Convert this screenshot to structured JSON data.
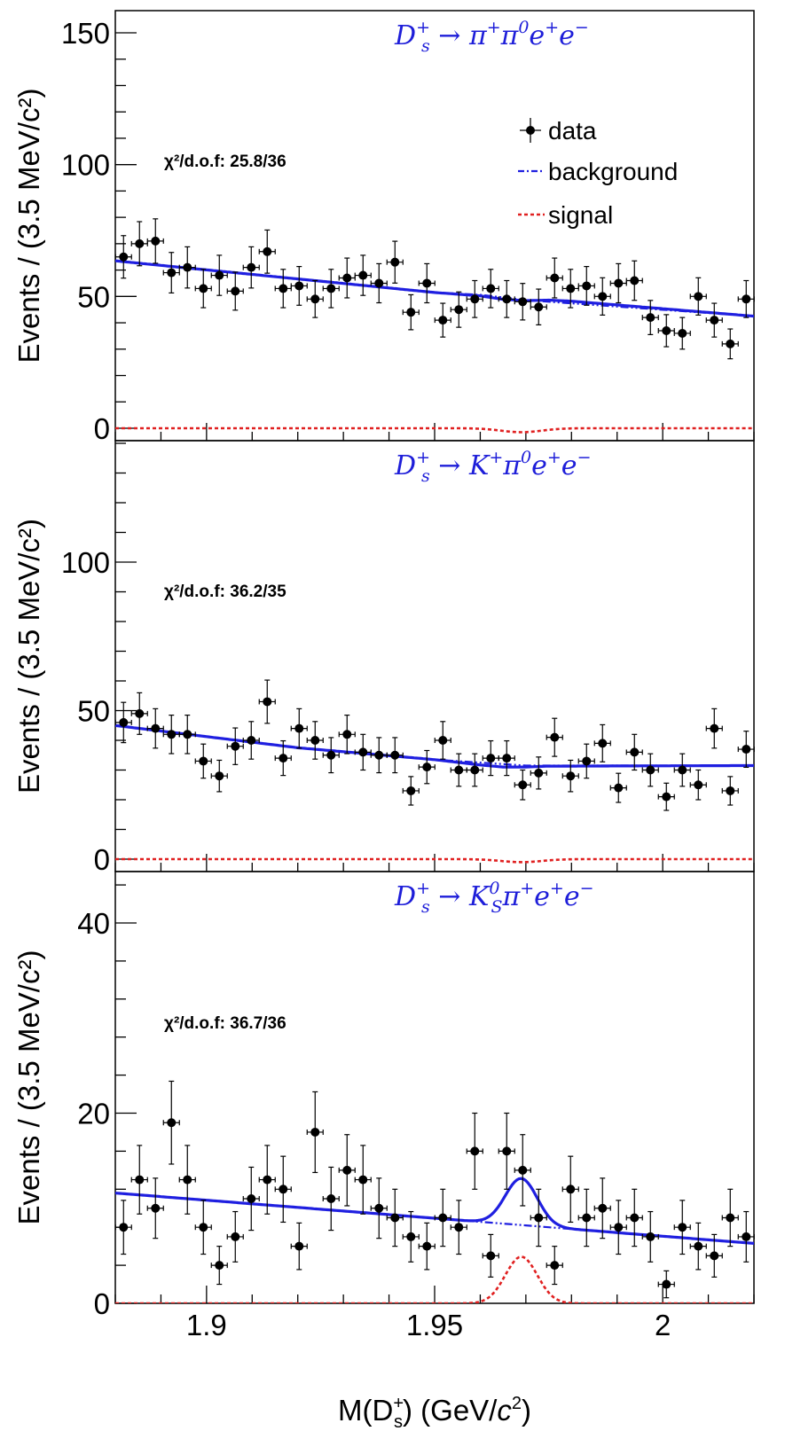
{
  "chart_data": [
    {
      "type": "scatter",
      "title": "D_s^+ → π^+π^0e^+e^-",
      "chi2": "χ²/d.o.f: 25.8/36",
      "ylabel": "Events / (3.5 MeV/c²)",
      "xlabel": "",
      "xlim": [
        1.88,
        2.02
      ],
      "ylim": [
        0,
        160
      ],
      "yticks": [
        0,
        50,
        100,
        150
      ],
      "legend": {
        "position": "top-right",
        "entries": [
          "data",
          "background",
          "signal"
        ]
      },
      "data": {
        "x": [
          1.8818,
          1.8853,
          1.8888,
          1.8923,
          1.8958,
          1.8993,
          1.9028,
          1.9063,
          1.9098,
          1.9133,
          1.9168,
          1.9203,
          1.9238,
          1.9273,
          1.9308,
          1.9343,
          1.9378,
          1.9413,
          1.9448,
          1.9483,
          1.9518,
          1.9553,
          1.9588,
          1.9623,
          1.9658,
          1.9693,
          1.9728,
          1.9763,
          1.9798,
          1.9833,
          1.9868,
          1.9903,
          1.9938,
          1.9973,
          2.0008,
          2.0043,
          2.0078,
          2.0113,
          2.0148,
          2.0183
        ],
        "y": [
          65,
          70,
          71,
          59,
          61,
          53,
          58,
          52,
          61,
          67,
          53,
          54,
          49,
          53,
          57,
          58,
          55,
          63,
          44,
          55,
          41,
          45,
          49,
          53,
          49,
          48,
          46,
          57,
          53,
          54,
          50,
          55,
          56,
          42,
          37,
          36,
          50,
          41,
          32,
          49
        ]
      },
      "background": {
        "x": [
          1.88,
          1.95,
          1.96,
          1.97,
          2.02
        ],
        "y": [
          63.5,
          51.5,
          50.6,
          48.6,
          42.5
        ]
      },
      "fit": {
        "x": [
          1.88,
          1.95,
          1.96,
          1.965,
          1.97,
          1.975,
          1.98,
          2.02
        ],
        "y": [
          63.5,
          51.5,
          50.2,
          48.9,
          48.4,
          48.6,
          48.2,
          42.5
        ]
      },
      "signal": {
        "mean": 1.969,
        "sigma": 0.0045,
        "amplitude": -1.5,
        "xlim": [
          1.88,
          2.02
        ]
      }
    },
    {
      "type": "scatter",
      "title": "D_s^+ → K^+π^0e^+e^-",
      "chi2": "χ²/d.o.f: 36.2/35",
      "ylabel": "Events / (3.5 MeV/c²)",
      "xlabel": "",
      "xlim": [
        1.88,
        2.02
      ],
      "ylim": [
        0,
        140
      ],
      "yticks": [
        0,
        50,
        100
      ],
      "data": {
        "x": [
          1.8818,
          1.8853,
          1.8888,
          1.8923,
          1.8958,
          1.8993,
          1.9028,
          1.9063,
          1.9098,
          1.9133,
          1.9168,
          1.9203,
          1.9238,
          1.9273,
          1.9308,
          1.9343,
          1.9378,
          1.9413,
          1.9448,
          1.9483,
          1.9518,
          1.9553,
          1.9588,
          1.9623,
          1.9658,
          1.9693,
          1.9728,
          1.9763,
          1.9798,
          1.9833,
          1.9868,
          1.9903,
          1.9938,
          1.9973,
          2.0008,
          2.0043,
          2.0078,
          2.0113,
          2.0148,
          2.0183
        ],
        "y": [
          46,
          49,
          44,
          42,
          42,
          33,
          28,
          38,
          40,
          53,
          34,
          44,
          40,
          35,
          42,
          36,
          35,
          35,
          23,
          31,
          40,
          30,
          30,
          34,
          34,
          25,
          29,
          41,
          28,
          33,
          39,
          24,
          36,
          30,
          21,
          30,
          25,
          44,
          23,
          37
        ]
      },
      "background": {
        "x": [
          1.88,
          1.92,
          1.95,
          1.97,
          2.02
        ],
        "y": [
          45,
          37.5,
          33.5,
          31.5,
          31.5
        ]
      },
      "fit": {
        "x": [
          1.88,
          1.92,
          1.95,
          1.96,
          1.965,
          1.97,
          1.975,
          2.02
        ],
        "y": [
          45,
          37.5,
          33.5,
          31.7,
          31,
          31,
          31.3,
          31.5
        ]
      },
      "signal": {
        "mean": 1.969,
        "sigma": 0.0045,
        "amplitude": -1.0,
        "xlim": [
          1.88,
          2.02
        ]
      }
    },
    {
      "type": "scatter",
      "title": "D_s^+ → K_S^0π^+e^+e^-",
      "chi2": "χ²/d.o.f: 36.7/36",
      "ylabel": "Events / (3.5 MeV/c²)",
      "xlabel": "M(D_s^+) (GeV/c²)",
      "xlim": [
        1.88,
        2.02
      ],
      "ylim": [
        0,
        45
      ],
      "yticks": [
        0,
        20,
        40
      ],
      "xticks": [
        1.9,
        1.95,
        2
      ],
      "xtick_labels": [
        "1.9",
        "1.95",
        "2"
      ],
      "data": {
        "x": [
          1.8818,
          1.8853,
          1.8888,
          1.8923,
          1.8958,
          1.8993,
          1.9028,
          1.9063,
          1.9098,
          1.9133,
          1.9168,
          1.9203,
          1.9238,
          1.9273,
          1.9308,
          1.9343,
          1.9378,
          1.9413,
          1.9448,
          1.9483,
          1.9518,
          1.9553,
          1.9588,
          1.9623,
          1.9658,
          1.9693,
          1.9728,
          1.9763,
          1.9798,
          1.9833,
          1.9868,
          1.9903,
          1.9938,
          1.9973,
          2.0008,
          2.0043,
          2.0078,
          2.0113,
          2.0148,
          2.0183
        ],
        "y": [
          8,
          13,
          10,
          19,
          13,
          8,
          4,
          7,
          11,
          13,
          12,
          6,
          18,
          11,
          14,
          13,
          10,
          9,
          7,
          6,
          9,
          8,
          16,
          5,
          16,
          14,
          9,
          4,
          12,
          9,
          10,
          8,
          9,
          7,
          2,
          8,
          6,
          5,
          9,
          7
        ]
      },
      "background": {
        "x": [
          1.88,
          2.02
        ],
        "y": [
          11.6,
          6.3
        ]
      },
      "signal": {
        "mean": 1.969,
        "sigma": 0.0035,
        "amplitude": 4.9,
        "xlim": [
          1.88,
          2.02
        ]
      },
      "legend": {
        "position": "top-right",
        "entries": []
      }
    }
  ],
  "legend_labels": {
    "data": "data",
    "background": "background",
    "signal": "signal"
  },
  "colors": {
    "title": "#1e1ed9",
    "fit": "#1f1fe0",
    "signal": "#e02020",
    "data": "#000000"
  }
}
